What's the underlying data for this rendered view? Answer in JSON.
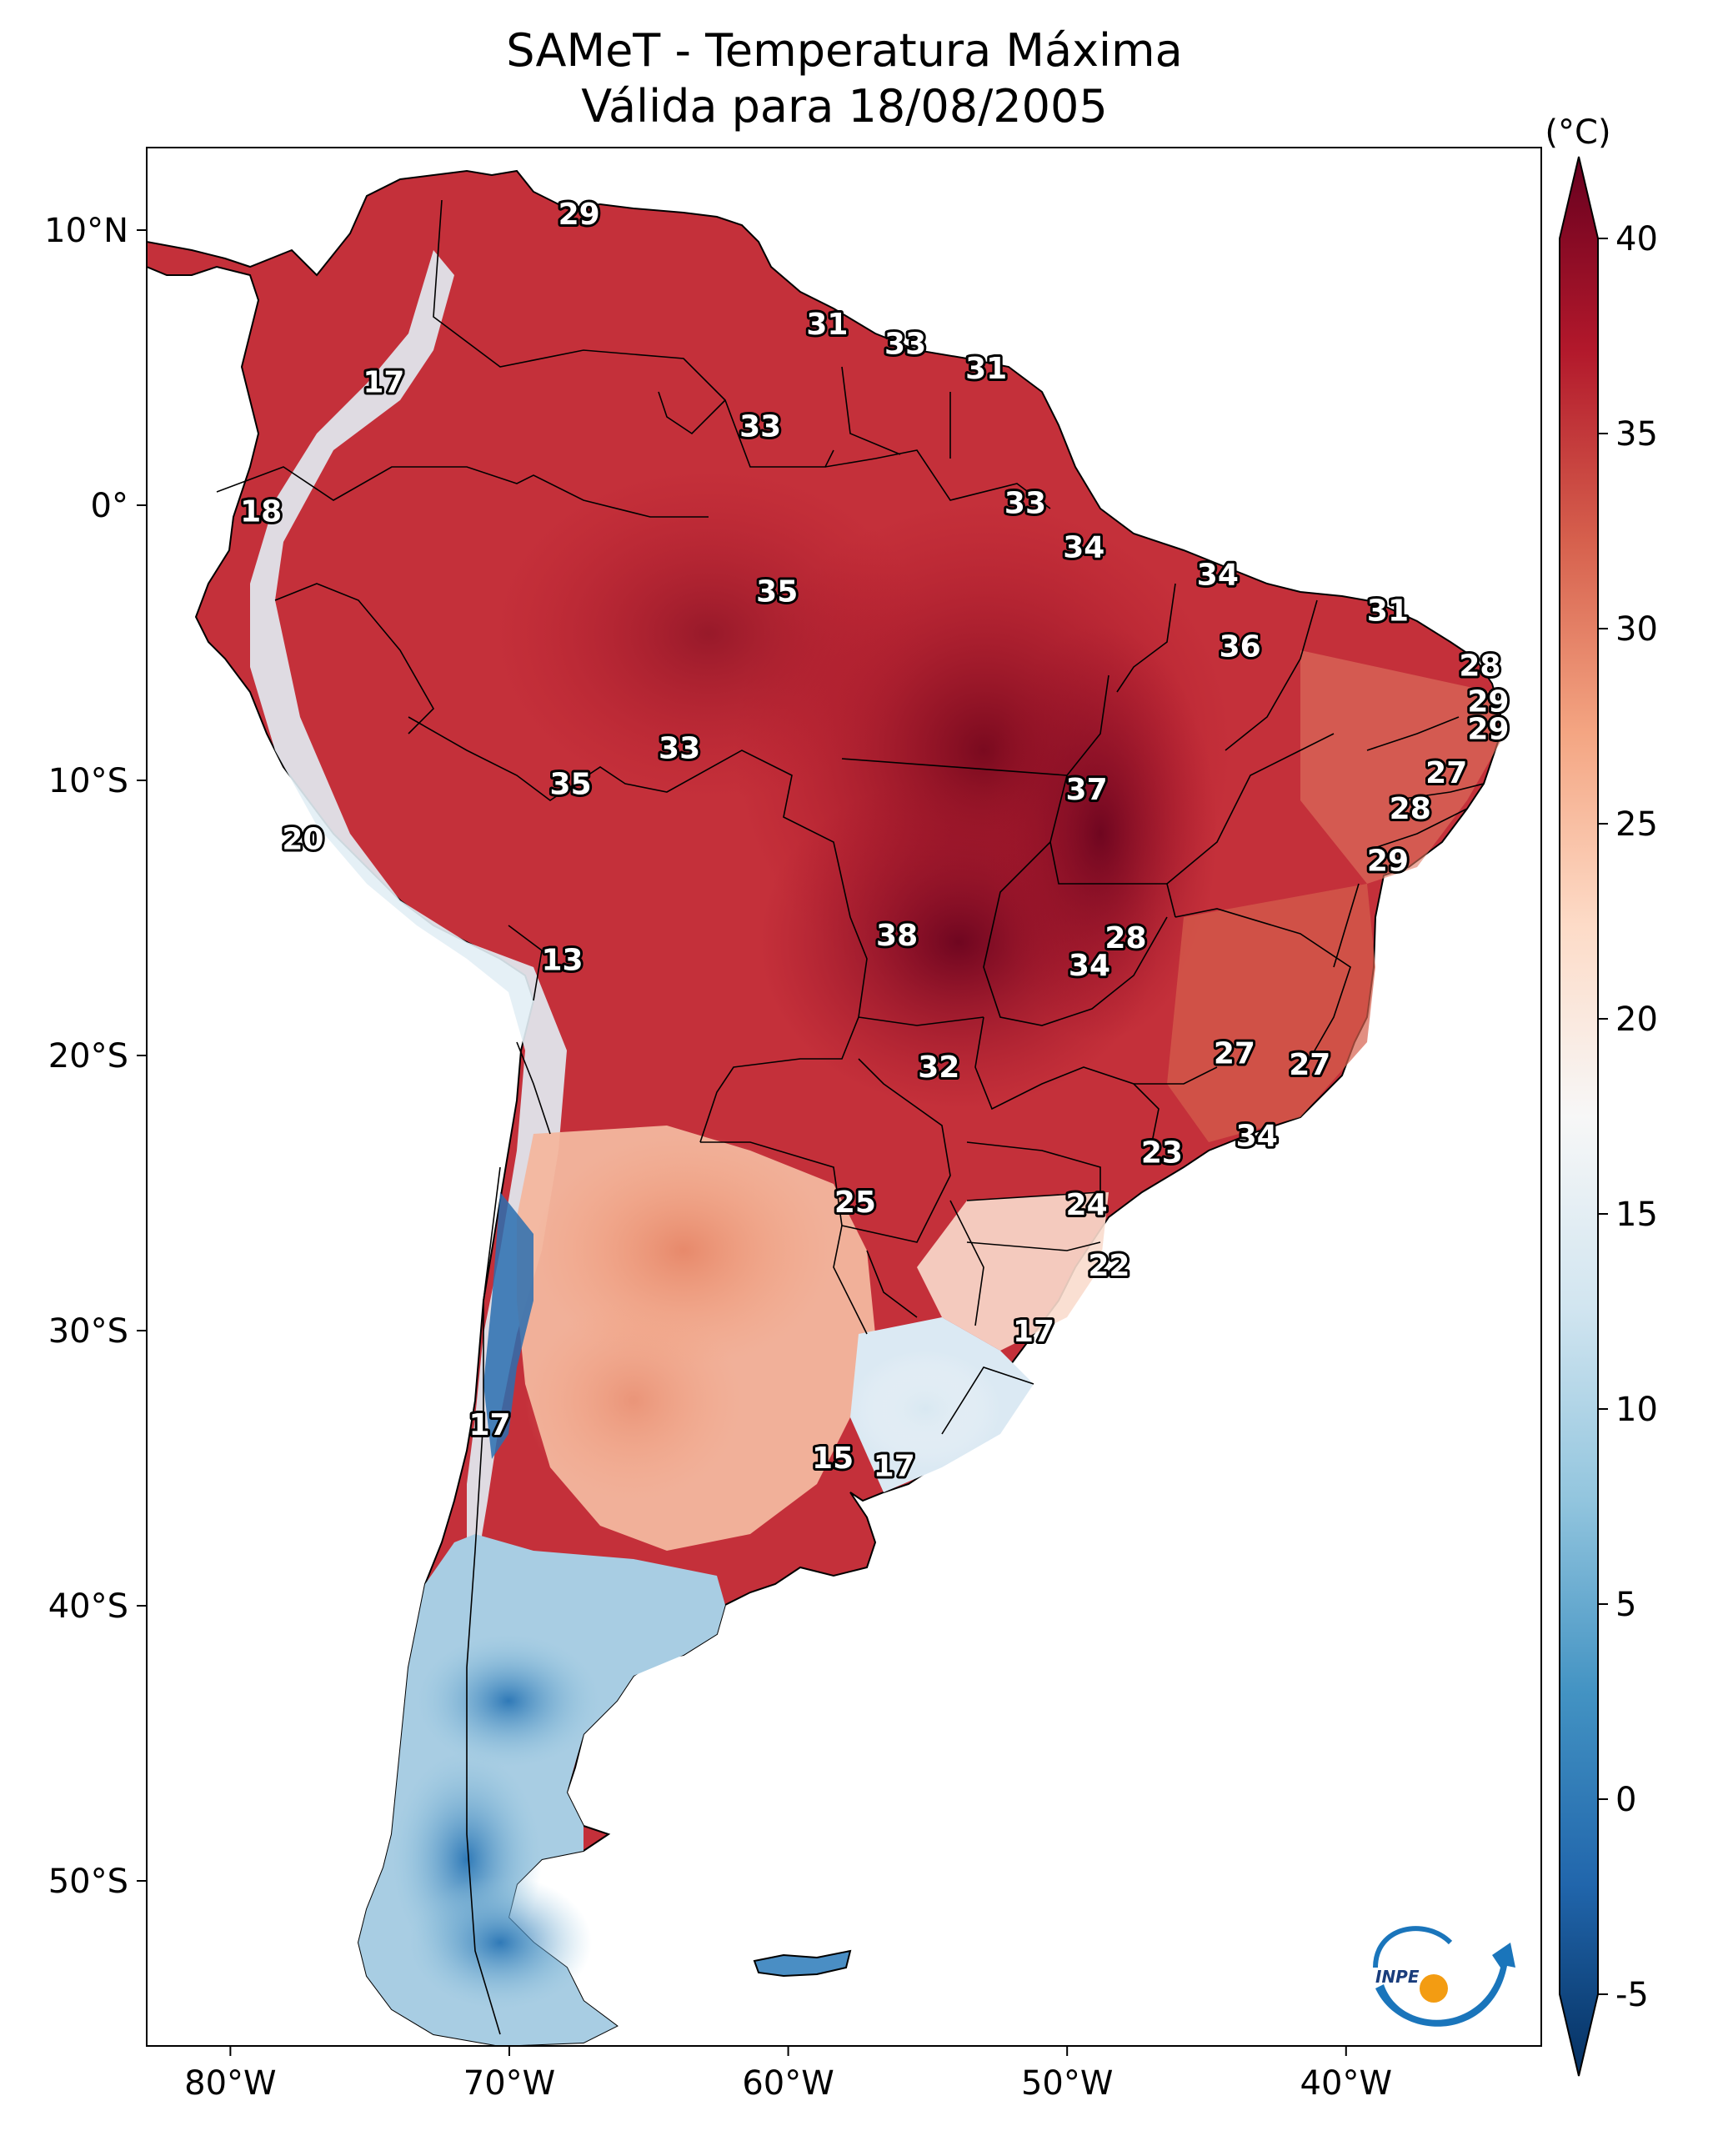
{
  "title": {
    "line1": "SAMeT - Temperatura Máxima",
    "line2": "Válida para 18/08/2005"
  },
  "map": {
    "lon_range": [
      -83,
      -33
    ],
    "lat_range": [
      -56,
      13
    ],
    "x_ticks": [
      {
        "value": -80,
        "label": "80°W"
      },
      {
        "value": -70,
        "label": "70°W"
      },
      {
        "value": -60,
        "label": "60°W"
      },
      {
        "value": -50,
        "label": "50°W"
      },
      {
        "value": -40,
        "label": "40°W"
      }
    ],
    "y_ticks": [
      {
        "value": 10,
        "label": "10°N"
      },
      {
        "value": 0,
        "label": "0°"
      },
      {
        "value": -10,
        "label": "10°S"
      },
      {
        "value": -20,
        "label": "20°S"
      },
      {
        "value": -30,
        "label": "30°S"
      },
      {
        "value": -40,
        "label": "40°S"
      },
      {
        "value": -50,
        "label": "50°S"
      }
    ],
    "station_values": [
      {
        "text": "29",
        "lon": -67.5,
        "lat": 10.6
      },
      {
        "text": "17",
        "lon": -74.5,
        "lat": 4.5
      },
      {
        "text": "31",
        "lon": -58.6,
        "lat": 6.6
      },
      {
        "text": "33",
        "lon": -55.8,
        "lat": 5.9
      },
      {
        "text": "31",
        "lon": -52.9,
        "lat": 5.0
      },
      {
        "text": "33",
        "lon": -61.0,
        "lat": 2.9
      },
      {
        "text": "18",
        "lon": -78.9,
        "lat": -0.2
      },
      {
        "text": "33",
        "lon": -51.5,
        "lat": 0.1
      },
      {
        "text": "34",
        "lon": -49.4,
        "lat": -1.5
      },
      {
        "text": "35",
        "lon": -60.4,
        "lat": -3.1
      },
      {
        "text": "34",
        "lon": -44.6,
        "lat": -2.5
      },
      {
        "text": "31",
        "lon": -38.5,
        "lat": -3.8
      },
      {
        "text": "36",
        "lon": -43.8,
        "lat": -5.1
      },
      {
        "text": "28",
        "lon": -35.2,
        "lat": -5.8
      },
      {
        "text": "29",
        "lon": -34.9,
        "lat": -7.1
      },
      {
        "text": "29",
        "lon": -34.9,
        "lat": -8.1
      },
      {
        "text": "27",
        "lon": -36.4,
        "lat": -9.7
      },
      {
        "text": "33",
        "lon": -63.9,
        "lat": -8.8
      },
      {
        "text": "35",
        "lon": -67.8,
        "lat": -10.1
      },
      {
        "text": "37",
        "lon": -49.3,
        "lat": -10.3
      },
      {
        "text": "28",
        "lon": -37.7,
        "lat": -11.0
      },
      {
        "text": "20",
        "lon": -77.4,
        "lat": -12.1
      },
      {
        "text": "29",
        "lon": -38.5,
        "lat": -12.9
      },
      {
        "text": "38",
        "lon": -56.1,
        "lat": -15.6
      },
      {
        "text": "28",
        "lon": -47.9,
        "lat": -15.7
      },
      {
        "text": "34",
        "lon": -49.2,
        "lat": -16.7
      },
      {
        "text": "13",
        "lon": -68.1,
        "lat": -16.5
      },
      {
        "text": "27",
        "lon": -44.0,
        "lat": -19.9
      },
      {
        "text": "27",
        "lon": -41.3,
        "lat": -20.3
      },
      {
        "text": "32",
        "lon": -54.6,
        "lat": -20.4
      },
      {
        "text": "34",
        "lon": -43.2,
        "lat": -22.9
      },
      {
        "text": "23",
        "lon": -46.6,
        "lat": -23.5
      },
      {
        "text": "25",
        "lon": -57.6,
        "lat": -25.3
      },
      {
        "text": "24",
        "lon": -49.3,
        "lat": -25.4
      },
      {
        "text": "22",
        "lon": -48.5,
        "lat": -27.6
      },
      {
        "text": "17",
        "lon": -51.2,
        "lat": -30.0
      },
      {
        "text": "17",
        "lon": -70.7,
        "lat": -33.4
      },
      {
        "text": "15",
        "lon": -58.4,
        "lat": -34.6
      },
      {
        "text": "17",
        "lon": -56.2,
        "lat": -34.9
      }
    ]
  },
  "colorbar": {
    "unit": "(°C)",
    "min": -5,
    "max": 40,
    "ticks": [
      40,
      35,
      30,
      25,
      20,
      15,
      10,
      5,
      0,
      -5
    ],
    "tick_labels": [
      "40",
      "35",
      "30",
      "25",
      "20",
      "15",
      "10",
      "5",
      "0",
      "-5"
    ],
    "colors": [
      "#053061",
      "#2166ac",
      "#4393c3",
      "#92c5de",
      "#d1e5f0",
      "#f7f7f7",
      "#fddbc7",
      "#f4a582",
      "#d6604d",
      "#b2182b",
      "#67001f"
    ]
  },
  "logo": {
    "text": "INPE",
    "colors": {
      "blue": "#1a75bb",
      "orange": "#f39c12"
    }
  }
}
